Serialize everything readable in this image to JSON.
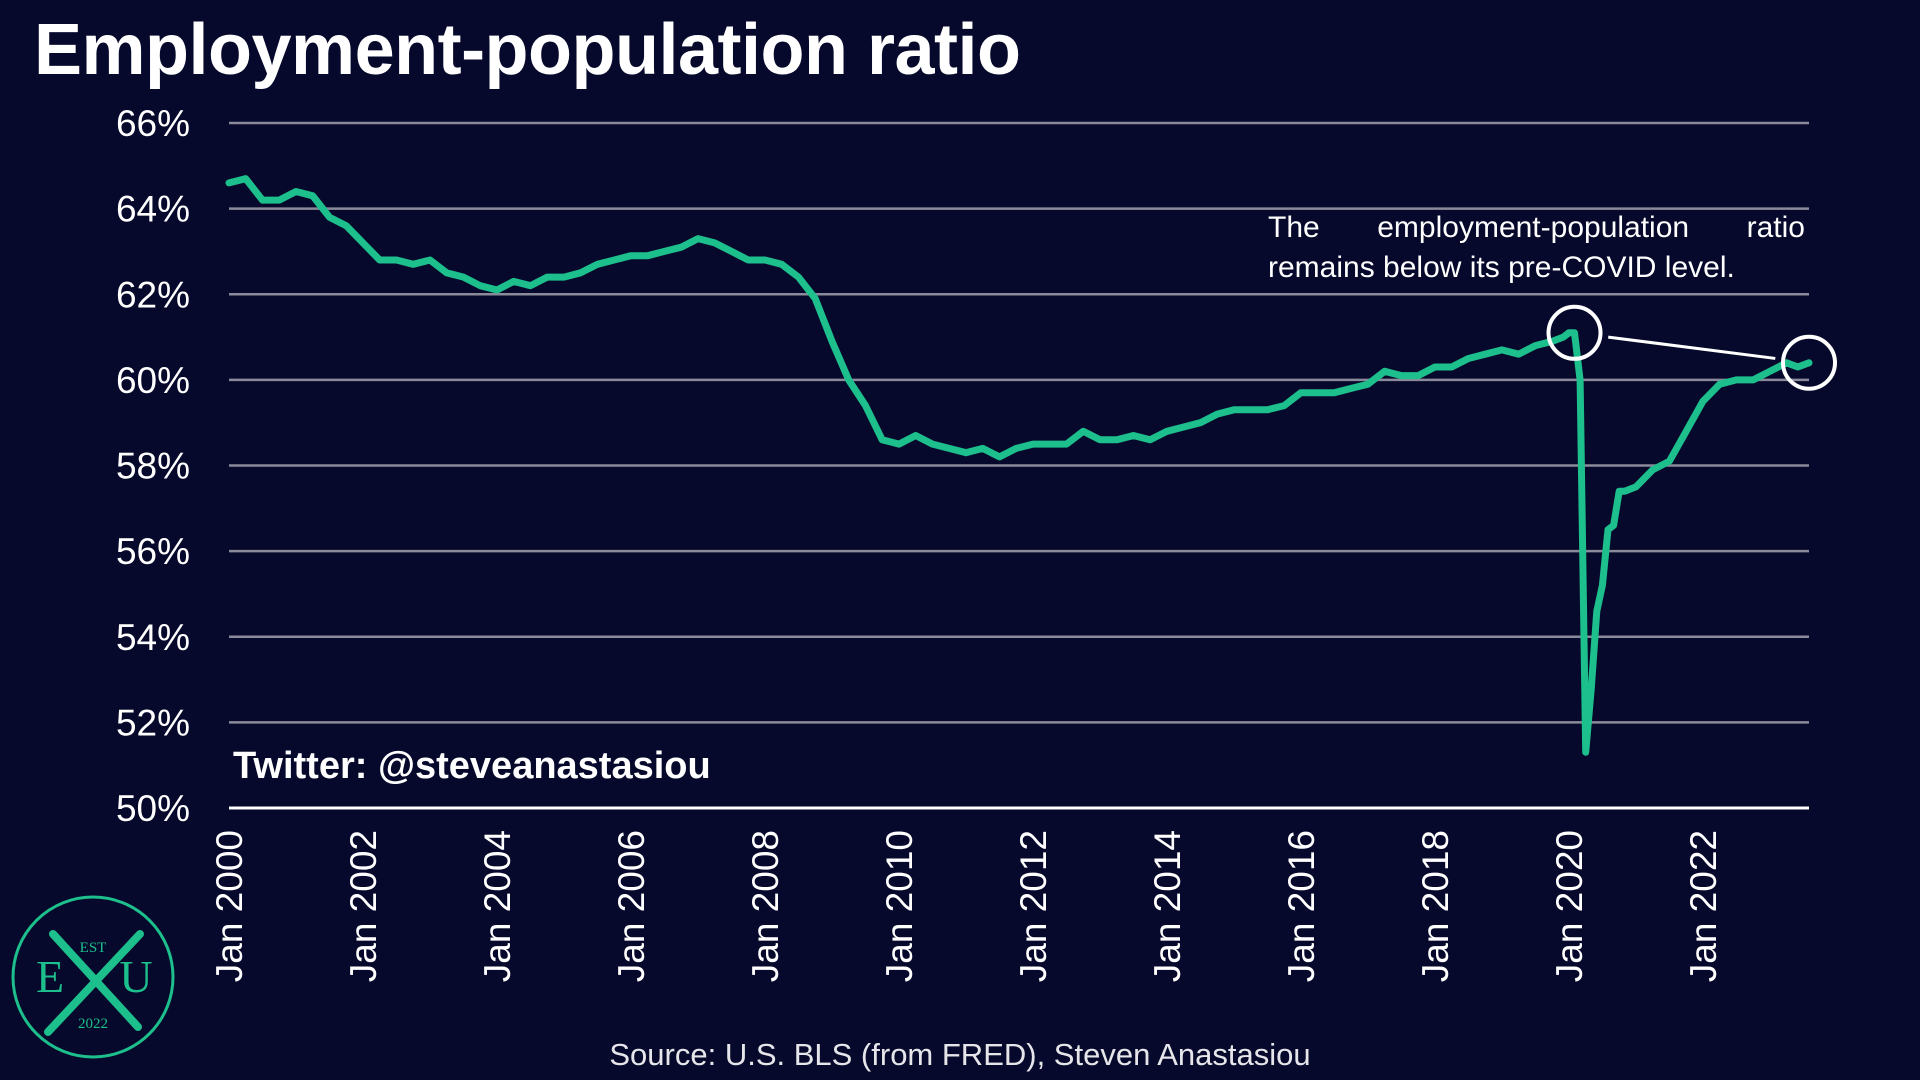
{
  "title": "Employment-population ratio",
  "annotation": "The employment-population ratio remains below its pre-COVID level.",
  "twitter": "Twitter: @steveanastasiou",
  "source": "Source: U.S. BLS (from FRED), Steven Anastasiou",
  "logo": {
    "top": "EST",
    "left": "E",
    "right": "U",
    "bottom": "2022",
    "color": "#1dbf8c"
  },
  "colors": {
    "background": "#06092b",
    "line": "#1dbf8c",
    "grid": "#8a8a9a",
    "text": "#ffffff"
  },
  "chart_data": {
    "type": "line",
    "title": "Employment-population ratio",
    "xlabel": "",
    "ylabel": "",
    "x_range": [
      "2000-01",
      "2023-08"
    ],
    "ylim": [
      50,
      66
    ],
    "y_ticks": [
      "50%",
      "52%",
      "54%",
      "56%",
      "58%",
      "60%",
      "62%",
      "64%",
      "66%"
    ],
    "x_ticks": [
      "Jan 2000",
      "Jan 2002",
      "Jan 2004",
      "Jan 2006",
      "Jan 2008",
      "Jan 2010",
      "Jan 2012",
      "Jan 2014",
      "Jan 2016",
      "Jan 2018",
      "Jan 2020",
      "Jan 2022"
    ],
    "grid": true,
    "series": [
      {
        "name": "",
        "points": [
          [
            "2000-01",
            64.6
          ],
          [
            "2000-04",
            64.7
          ],
          [
            "2000-07",
            64.2
          ],
          [
            "2000-10",
            64.2
          ],
          [
            "2001-01",
            64.4
          ],
          [
            "2001-04",
            64.3
          ],
          [
            "2001-07",
            63.8
          ],
          [
            "2001-10",
            63.6
          ],
          [
            "2002-01",
            63.2
          ],
          [
            "2002-04",
            62.8
          ],
          [
            "2002-07",
            62.8
          ],
          [
            "2002-10",
            62.7
          ],
          [
            "2003-01",
            62.8
          ],
          [
            "2003-04",
            62.5
          ],
          [
            "2003-07",
            62.4
          ],
          [
            "2003-10",
            62.2
          ],
          [
            "2004-01",
            62.1
          ],
          [
            "2004-04",
            62.3
          ],
          [
            "2004-07",
            62.2
          ],
          [
            "2004-10",
            62.4
          ],
          [
            "2005-01",
            62.4
          ],
          [
            "2005-04",
            62.5
          ],
          [
            "2005-07",
            62.7
          ],
          [
            "2005-10",
            62.8
          ],
          [
            "2006-01",
            62.9
          ],
          [
            "2006-04",
            62.9
          ],
          [
            "2006-07",
            63.0
          ],
          [
            "2006-10",
            63.1
          ],
          [
            "2007-01",
            63.3
          ],
          [
            "2007-04",
            63.2
          ],
          [
            "2007-07",
            63.0
          ],
          [
            "2007-10",
            62.8
          ],
          [
            "2008-01",
            62.8
          ],
          [
            "2008-04",
            62.7
          ],
          [
            "2008-07",
            62.4
          ],
          [
            "2008-10",
            61.9
          ],
          [
            "2009-01",
            60.9
          ],
          [
            "2009-04",
            60.0
          ],
          [
            "2009-07",
            59.4
          ],
          [
            "2009-10",
            58.6
          ],
          [
            "2010-01",
            58.5
          ],
          [
            "2010-04",
            58.7
          ],
          [
            "2010-07",
            58.5
          ],
          [
            "2010-10",
            58.4
          ],
          [
            "2011-01",
            58.3
          ],
          [
            "2011-04",
            58.4
          ],
          [
            "2011-07",
            58.2
          ],
          [
            "2011-10",
            58.4
          ],
          [
            "2012-01",
            58.5
          ],
          [
            "2012-04",
            58.5
          ],
          [
            "2012-07",
            58.5
          ],
          [
            "2012-10",
            58.8
          ],
          [
            "2013-01",
            58.6
          ],
          [
            "2013-04",
            58.6
          ],
          [
            "2013-07",
            58.7
          ],
          [
            "2013-10",
            58.6
          ],
          [
            "2014-01",
            58.8
          ],
          [
            "2014-04",
            58.9
          ],
          [
            "2014-07",
            59.0
          ],
          [
            "2014-10",
            59.2
          ],
          [
            "2015-01",
            59.3
          ],
          [
            "2015-04",
            59.3
          ],
          [
            "2015-07",
            59.3
          ],
          [
            "2015-10",
            59.4
          ],
          [
            "2016-01",
            59.7
          ],
          [
            "2016-04",
            59.7
          ],
          [
            "2016-07",
            59.7
          ],
          [
            "2016-10",
            59.8
          ],
          [
            "2017-01",
            59.9
          ],
          [
            "2017-04",
            60.2
          ],
          [
            "2017-07",
            60.1
          ],
          [
            "2017-10",
            60.1
          ],
          [
            "2018-01",
            60.3
          ],
          [
            "2018-04",
            60.3
          ],
          [
            "2018-07",
            60.5
          ],
          [
            "2018-10",
            60.6
          ],
          [
            "2019-01",
            60.7
          ],
          [
            "2019-04",
            60.6
          ],
          [
            "2019-07",
            60.8
          ],
          [
            "2019-10",
            60.9
          ],
          [
            "2019-12",
            61.0
          ],
          [
            "2020-01",
            61.1
          ],
          [
            "2020-02",
            61.1
          ],
          [
            "2020-03",
            60.0
          ],
          [
            "2020-04",
            51.3
          ],
          [
            "2020-05",
            52.8
          ],
          [
            "2020-06",
            54.6
          ],
          [
            "2020-07",
            55.2
          ],
          [
            "2020-08",
            56.5
          ],
          [
            "2020-09",
            56.6
          ],
          [
            "2020-10",
            57.4
          ],
          [
            "2020-11",
            57.4
          ],
          [
            "2021-01",
            57.5
          ],
          [
            "2021-04",
            57.9
          ],
          [
            "2021-07",
            58.1
          ],
          [
            "2021-10",
            58.8
          ],
          [
            "2022-01",
            59.5
          ],
          [
            "2022-04",
            59.9
          ],
          [
            "2022-07",
            60.0
          ],
          [
            "2022-10",
            60.0
          ],
          [
            "2023-01",
            60.2
          ],
          [
            "2023-04",
            60.4
          ],
          [
            "2023-06",
            60.3
          ],
          [
            "2023-08",
            60.4
          ]
        ]
      }
    ],
    "highlights": [
      {
        "x": "2020-02",
        "y": 61.1
      },
      {
        "x": "2023-08",
        "y": 60.4
      }
    ],
    "annotations": [
      "The employment-population ratio remains below its pre-COVID level."
    ]
  }
}
